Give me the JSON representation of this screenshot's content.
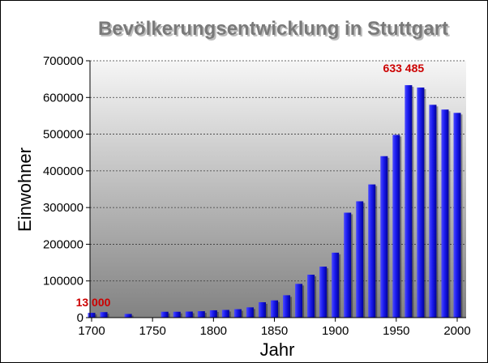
{
  "chart_data": {
    "type": "bar",
    "title": "Bevölkerungsentwicklung in Stuttgart",
    "xlabel": "Jahr",
    "ylabel": "Einwohner",
    "xlim": [
      1700,
      2000
    ],
    "ylim": [
      0,
      700000
    ],
    "x_ticks": [
      "1700",
      "1750",
      "1800",
      "1850",
      "1900",
      "1950",
      "2000"
    ],
    "y_ticks": [
      "0",
      "100000",
      "200000",
      "300000",
      "400000",
      "500000",
      "600000",
      "700000"
    ],
    "grid": "horizontal dashed",
    "background": "vertical gray gradient",
    "bar_color": "#1a1aee",
    "x": [
      1700,
      1710,
      1730,
      1760,
      1770,
      1780,
      1790,
      1800,
      1810,
      1820,
      1830,
      1840,
      1850,
      1860,
      1870,
      1880,
      1890,
      1900,
      1910,
      1920,
      1930,
      1940,
      1950,
      1960,
      1970,
      1980,
      1990,
      2000
    ],
    "values": [
      13000,
      15000,
      10000,
      16000,
      16000,
      16500,
      17500,
      20000,
      21000,
      23000,
      28000,
      42000,
      47000,
      61000,
      92000,
      117000,
      139000,
      177000,
      286000,
      317000,
      363000,
      440000,
      498000,
      633485,
      627000,
      580000,
      567000,
      558000
    ],
    "annotations": [
      {
        "text": "13 000",
        "x": 1700,
        "y": 13000,
        "color": "#cc0000"
      },
      {
        "text": "633 485",
        "x": 1960,
        "y": 633485,
        "color": "#cc0000"
      }
    ]
  }
}
